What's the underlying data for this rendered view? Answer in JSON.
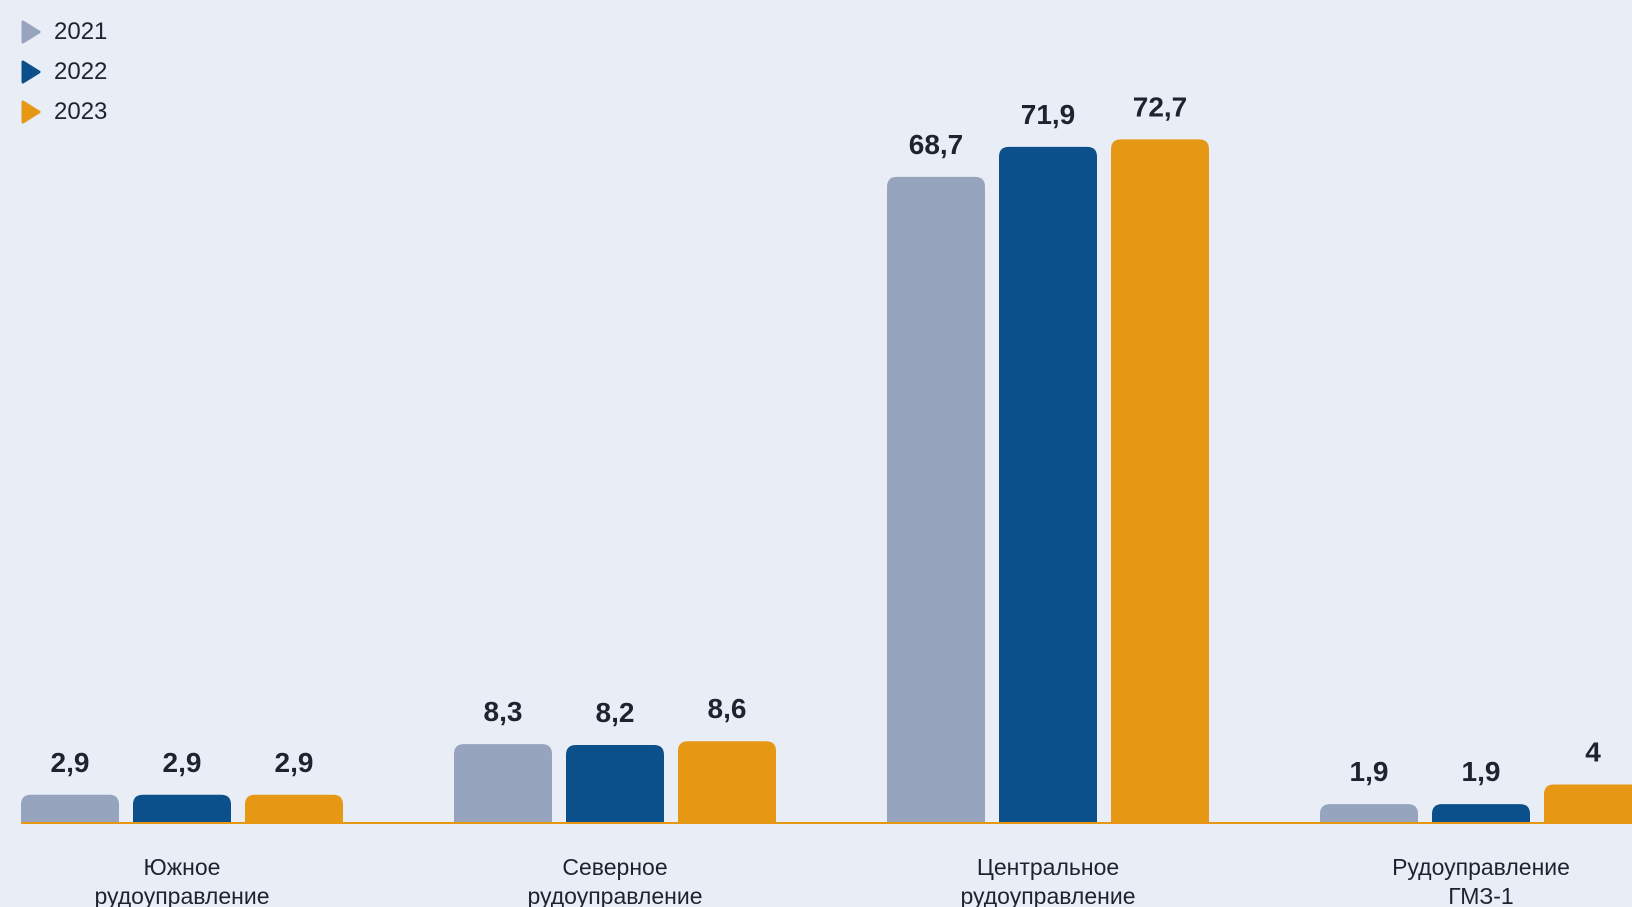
{
  "chart_data": {
    "type": "bar",
    "categories": [
      [
        "Южное",
        "рудоуправление"
      ],
      [
        "Северное",
        "рудоуправление"
      ],
      [
        "Центральное",
        "рудоуправление"
      ],
      [
        "Рудоуправление",
        "ГМЗ-1"
      ]
    ],
    "series": [
      {
        "name": "2021",
        "color": "#97a4bd",
        "values": [
          2.9,
          8.3,
          68.7,
          1.9
        ],
        "labels": [
          "2,9",
          "8,3",
          "68,7",
          "1,9"
        ]
      },
      {
        "name": "2022",
        "color": "#0b4f8b",
        "values": [
          2.9,
          8.2,
          71.9,
          1.9
        ],
        "labels": [
          "2,9",
          "8,2",
          "71,9",
          "1,9"
        ]
      },
      {
        "name": "2023",
        "color": "#e69714",
        "values": [
          2.9,
          8.6,
          72.7,
          4
        ],
        "labels": [
          "2,9",
          "8,6",
          "72,7",
          "4"
        ]
      }
    ],
    "legend_position": "top-left",
    "baseline_color": "#e69714",
    "grid": false
  }
}
